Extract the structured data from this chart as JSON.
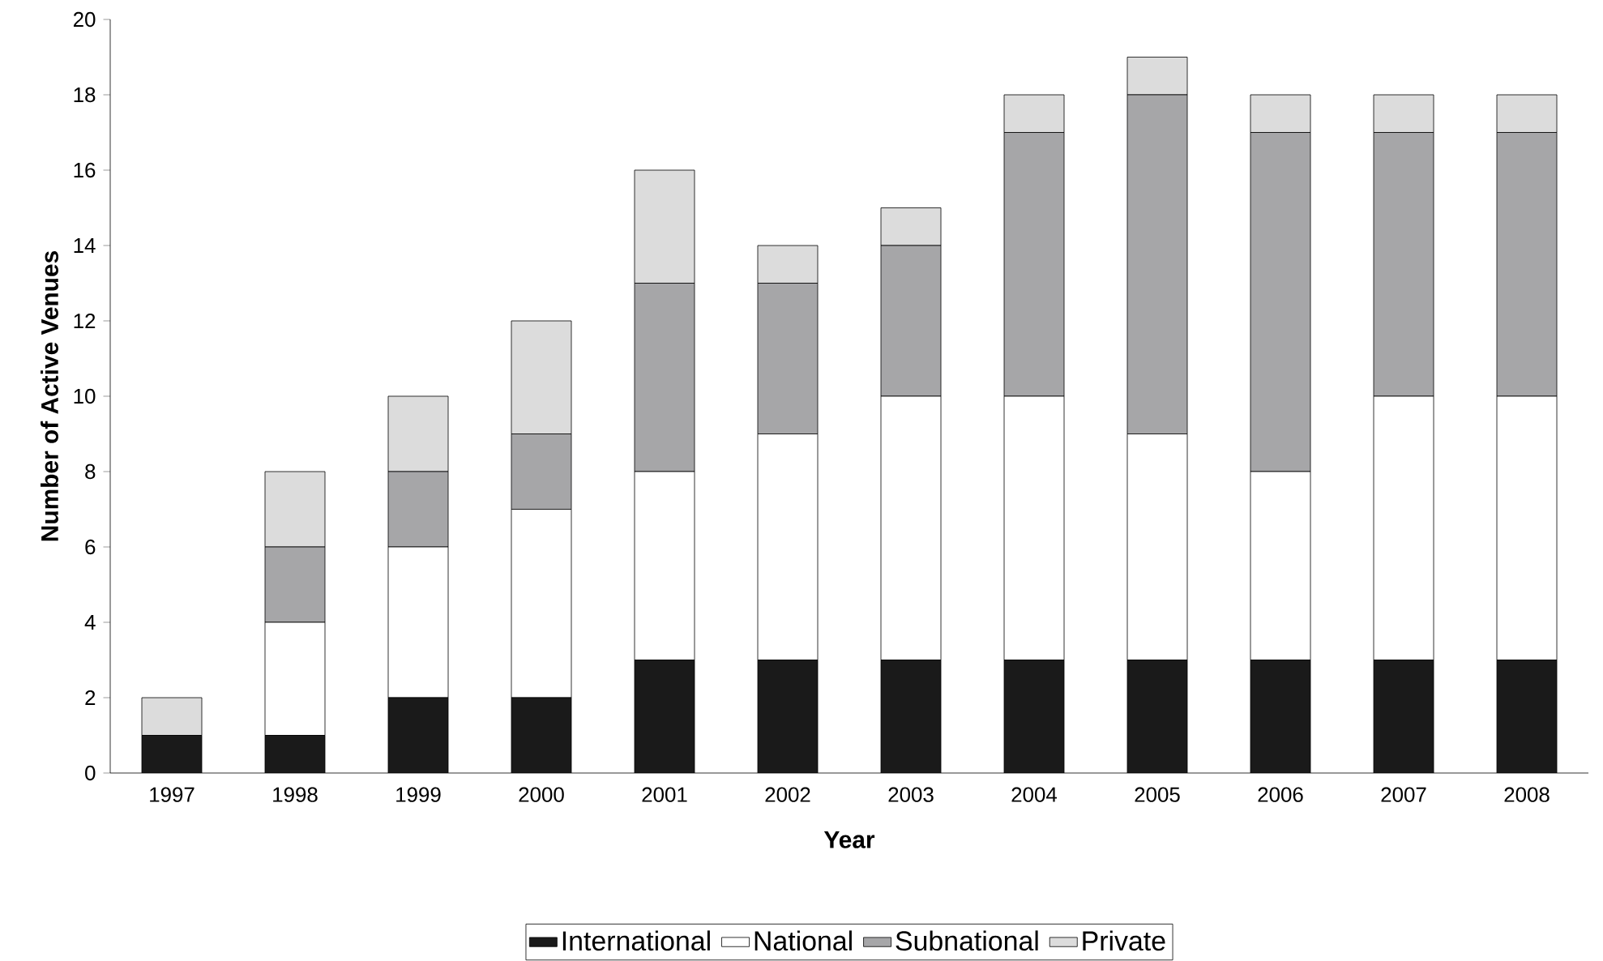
{
  "chart_data": {
    "type": "bar",
    "stacked": true,
    "xlabel": "Year",
    "ylabel": "Number of Active Venues",
    "categories": [
      "1997",
      "1998",
      "1999",
      "2000",
      "2001",
      "2002",
      "2003",
      "2004",
      "2005",
      "2006",
      "2007",
      "2008"
    ],
    "series": [
      {
        "name": "International",
        "color": "#1a1a1a",
        "values": [
          1,
          1,
          2,
          2,
          3,
          3,
          3,
          3,
          3,
          3,
          3,
          3
        ]
      },
      {
        "name": "National",
        "color": "#ffffff",
        "values": [
          0,
          3,
          4,
          5,
          5,
          6,
          7,
          7,
          6,
          5,
          7,
          7
        ]
      },
      {
        "name": "Subnational",
        "color": "#a6a6a8",
        "values": [
          0,
          2,
          2,
          2,
          5,
          4,
          4,
          7,
          9,
          9,
          7,
          7
        ]
      },
      {
        "name": "Private",
        "color": "#dcdcdc",
        "values": [
          1,
          2,
          2,
          3,
          3,
          1,
          1,
          1,
          1,
          1,
          1,
          1
        ]
      }
    ],
    "ylim": [
      0,
      20
    ],
    "yticks": [
      0,
      2,
      4,
      6,
      8,
      10,
      12,
      14,
      16,
      18,
      20
    ],
    "grid": false,
    "legend": "bottom"
  }
}
